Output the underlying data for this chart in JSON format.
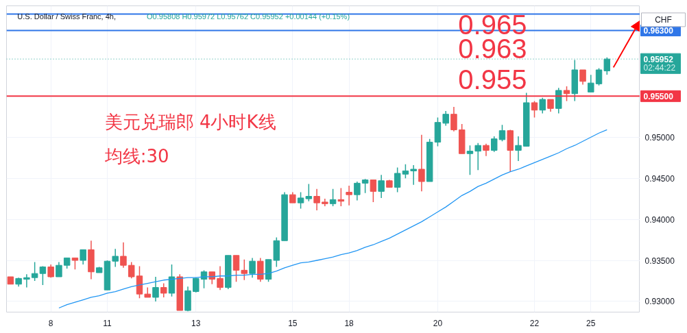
{
  "chart_data": {
    "type": "candlestick",
    "title": "U.S. Dollar / Swiss Franc, 4h,",
    "subtitle": "O0.95808 H0.95972 L0.95762 C0.95952 +0.00144 (+0.15%)",
    "categories": [
      null,
      null,
      null,
      null,
      null,
      "8",
      null,
      null,
      null,
      null,
      null,
      null,
      "11",
      null,
      null,
      null,
      null,
      null,
      null,
      null,
      null,
      null,
      null,
      "13",
      null,
      null,
      null,
      null,
      null,
      null,
      null,
      null,
      null,
      null,
      null,
      "15",
      null,
      null,
      null,
      null,
      null,
      null,
      "18",
      null,
      null,
      null,
      null,
      null,
      null,
      null,
      null,
      null,
      null,
      "20",
      null,
      null,
      null,
      null,
      null,
      null,
      null,
      null,
      null,
      null,
      null,
      "22",
      null,
      null,
      null,
      null,
      null,
      null,
      "25",
      null,
      null
    ],
    "ylim": [
      0.9287,
      0.966
    ],
    "yticks": [
      {
        "value": 0.93,
        "label": "0.93000"
      },
      {
        "value": 0.935,
        "label": "0.93500"
      },
      {
        "value": 0.94,
        "label": "0.94000"
      },
      {
        "value": 0.945,
        "label": "0.94500"
      },
      {
        "value": 0.95,
        "label": "0.95000"
      }
    ],
    "grid": true,
    "series": [
      {
        "ohlc": [
          [
            0.933,
            0.933,
            0.9321,
            0.9321
          ],
          [
            0.9321,
            0.9329,
            0.9318,
            0.9328
          ],
          [
            0.9327,
            0.9333,
            0.9317,
            0.9329
          ],
          [
            0.9329,
            0.9348,
            0.9325,
            0.9334
          ],
          [
            0.9334,
            0.9343,
            0.932,
            0.9342
          ],
          [
            0.9342,
            0.9345,
            0.9329,
            0.933
          ],
          [
            0.933,
            0.9348,
            0.933,
            0.9344
          ],
          [
            0.9344,
            0.9353,
            0.934,
            0.9353
          ],
          [
            0.9353,
            0.9353,
            0.9339,
            0.935
          ],
          [
            0.935,
            0.9363,
            0.9345,
            0.9363
          ],
          [
            0.9363,
            0.9374,
            0.9327,
            0.9336
          ],
          [
            0.9335,
            0.9342,
            0.9335,
            0.9341
          ],
          [
            0.9314,
            0.935,
            0.9314,
            0.9349
          ],
          [
            0.9349,
            0.9364,
            0.9342,
            0.9355
          ],
          [
            0.9355,
            0.9372,
            0.9341,
            0.9344
          ],
          [
            0.9344,
            0.9348,
            0.9328,
            0.933
          ],
          [
            0.9331,
            0.9343,
            0.9304,
            0.9309
          ],
          [
            0.9309,
            0.9317,
            0.9305,
            0.9305
          ],
          [
            0.9305,
            0.933,
            0.93,
            0.9317
          ],
          [
            0.9317,
            0.9322,
            0.9305,
            0.931
          ],
          [
            0.931,
            0.9345,
            0.9306,
            0.933
          ],
          [
            0.933,
            0.9333,
            0.9289,
            0.9289
          ],
          [
            0.9289,
            0.9318,
            0.9288,
            0.9313
          ],
          [
            0.9312,
            0.9329,
            0.9311,
            0.9328
          ],
          [
            0.9327,
            0.9338,
            0.9316,
            0.9336
          ],
          [
            0.9336,
            0.9336,
            0.9321,
            0.9327
          ],
          [
            0.9328,
            0.9343,
            0.9314,
            0.9317
          ],
          [
            0.9317,
            0.9356,
            0.9315,
            0.9356
          ],
          [
            0.9356,
            0.9356,
            0.9324,
            0.9338
          ],
          [
            0.9338,
            0.9351,
            0.9326,
            0.9334
          ],
          [
            0.9334,
            0.9353,
            0.9329,
            0.9349
          ],
          [
            0.9349,
            0.9353,
            0.9324,
            0.9327
          ],
          [
            0.9327,
            0.9351,
            0.9324,
            0.9351
          ],
          [
            0.935,
            0.9378,
            0.9342,
            0.9374
          ],
          [
            0.9374,
            0.9433,
            0.9374,
            0.943
          ],
          [
            0.943,
            0.9433,
            0.942,
            0.942
          ],
          [
            0.942,
            0.9433,
            0.9413,
            0.9426
          ],
          [
            0.9425,
            0.9443,
            0.9422,
            0.9428
          ],
          [
            0.9428,
            0.9437,
            0.9411,
            0.942
          ],
          [
            0.9421,
            0.9425,
            0.9416,
            0.9419
          ],
          [
            0.9419,
            0.9437,
            0.9416,
            0.9424
          ],
          [
            0.9424,
            0.9438,
            0.9416,
            0.9422
          ],
          [
            0.9433,
            0.9441,
            0.9417,
            0.943
          ],
          [
            0.943,
            0.9446,
            0.9423,
            0.9444
          ],
          [
            0.9444,
            0.9449,
            0.9432,
            0.9448
          ],
          [
            0.9448,
            0.9448,
            0.9421,
            0.9434
          ],
          [
            0.9434,
            0.9454,
            0.9426,
            0.9447
          ],
          [
            0.9447,
            0.9448,
            0.9439,
            0.9439
          ],
          [
            0.9439,
            0.9463,
            0.9433,
            0.9456
          ],
          [
            0.9455,
            0.9467,
            0.945,
            0.9459
          ],
          [
            0.9459,
            0.9466,
            0.9442,
            0.9461
          ],
          [
            0.9461,
            0.9503,
            0.9434,
            0.9446
          ],
          [
            0.9446,
            0.9498,
            0.9446,
            0.9494
          ],
          [
            0.9494,
            0.9524,
            0.9489,
            0.9518
          ],
          [
            0.9517,
            0.9532,
            0.9514,
            0.9528
          ],
          [
            0.9528,
            0.9537,
            0.9507,
            0.9509
          ],
          [
            0.9509,
            0.9516,
            0.948,
            0.948
          ],
          [
            0.948,
            0.949,
            0.9454,
            0.9483
          ],
          [
            0.9483,
            0.9493,
            0.946,
            0.949
          ],
          [
            0.949,
            0.9492,
            0.9477,
            0.9484
          ],
          [
            0.9484,
            0.9501,
            0.9482,
            0.9498
          ],
          [
            0.9497,
            0.9515,
            0.9495,
            0.9508
          ],
          [
            0.9508,
            0.9509,
            0.9458,
            0.9484
          ],
          [
            0.9484,
            0.9501,
            0.9471,
            0.949
          ],
          [
            0.9489,
            0.9554,
            0.9489,
            0.9542
          ],
          [
            0.9542,
            0.9544,
            0.9524,
            0.9533
          ],
          [
            0.9533,
            0.9548,
            0.9529,
            0.9546
          ],
          [
            0.9546,
            0.9546,
            0.9531,
            0.9535
          ],
          [
            0.9535,
            0.956,
            0.9529,
            0.9557
          ],
          [
            0.9557,
            0.9562,
            0.9544,
            0.9553
          ],
          [
            0.9553,
            0.9594,
            0.9544,
            0.9582
          ],
          [
            0.9582,
            0.9582,
            0.9564,
            0.9568
          ],
          [
            0.9555,
            0.9576,
            0.9555,
            0.9566
          ],
          [
            0.9565,
            0.9584,
            0.9563,
            0.9582
          ],
          [
            0.95808,
            0.95972,
            0.95762,
            0.95952
          ]
        ],
        "colors": [
          "#ef5350",
          "#26a69a",
          "#26a69a",
          "#26a69a",
          "#26a69a",
          "#ef5350",
          "#26a69a",
          "#26a69a",
          "#ef5350",
          "#26a69a",
          "#ef5350",
          "#26a69a",
          "#26a69a",
          "#26a69a",
          "#ef5350",
          "#ef5350",
          "#ef5350",
          "#ef5350",
          "#26a69a",
          "#ef5350",
          "#26a69a",
          "#ef5350",
          "#26a69a",
          "#26a69a",
          "#26a69a",
          "#ef5350",
          "#ef5350",
          "#26a69a",
          "#ef5350",
          "#ef5350",
          "#26a69a",
          "#ef5350",
          "#26a69a",
          "#26a69a",
          "#26a69a",
          "#ef5350",
          "#26a69a",
          "#26a69a",
          "#ef5350",
          "#ef5350",
          "#26a69a",
          "#ef5350",
          "#ef5350",
          "#26a69a",
          "#26a69a",
          "#ef5350",
          "#26a69a",
          "#ef5350",
          "#26a69a",
          "#26a69a",
          "#26a69a",
          "#ef5350",
          "#26a69a",
          "#26a69a",
          "#26a69a",
          "#ef5350",
          "#ef5350",
          "#26a69a",
          "#26a69a",
          "#ef5350",
          "#26a69a",
          "#26a69a",
          "#ef5350",
          "#26a69a",
          "#26a69a",
          "#ef5350",
          "#26a69a",
          "#ef5350",
          "#26a69a",
          "#ef5350",
          "#26a69a",
          "#ef5350",
          "#26a69a",
          "#26a69a",
          "#26a69a"
        ]
      },
      {
        "type": "line",
        "color": "#2196f3",
        "values": [
          null,
          null,
          null,
          null,
          null,
          null,
          0.9292,
          0.9296,
          0.9299,
          0.9302,
          0.9305,
          0.9307,
          0.931,
          0.9312,
          0.9315,
          0.9318,
          0.932,
          0.9322,
          0.9324,
          0.9326,
          0.9327,
          0.9328,
          0.9329,
          0.9329,
          0.933,
          0.933,
          0.9331,
          0.9331,
          0.9332,
          0.9332,
          0.9333,
          0.9333,
          0.9334,
          0.9337,
          0.9341,
          0.9344,
          0.9347,
          0.9348,
          0.935,
          0.9352,
          0.9354,
          0.9357,
          0.9359,
          0.9362,
          0.9366,
          0.9369,
          0.9373,
          0.9377,
          0.9382,
          0.9387,
          0.9392,
          0.9397,
          0.9403,
          0.9409,
          0.9415,
          0.9422,
          0.9429,
          0.9434,
          0.944,
          0.9444,
          0.9449,
          0.9454,
          0.9458,
          0.9461,
          0.9465,
          0.9469,
          0.9473,
          0.9477,
          0.9481,
          0.9486,
          0.949,
          0.9495,
          0.95,
          0.9505,
          0.9509
        ]
      }
    ],
    "ref_lines": [
      {
        "axis": "y",
        "value": 0.965,
        "label": null,
        "color": "#2f76e8"
      },
      {
        "axis": "y",
        "value": 0.963,
        "label": "0.96300",
        "color": "#2f76e8"
      },
      {
        "axis": "y",
        "value": 0.95952,
        "label": "0.95952",
        "color": "#26a69a",
        "line_style": "dotted"
      },
      {
        "axis": "y",
        "value": 0.955,
        "label": "0.95500",
        "color": "#f23645"
      }
    ],
    "annotations": [
      "0.965",
      "0.963",
      "0.955",
      "美元兑瑞郎 4小时K线",
      "均线:30",
      "CHF",
      "02:44:22"
    ]
  }
}
